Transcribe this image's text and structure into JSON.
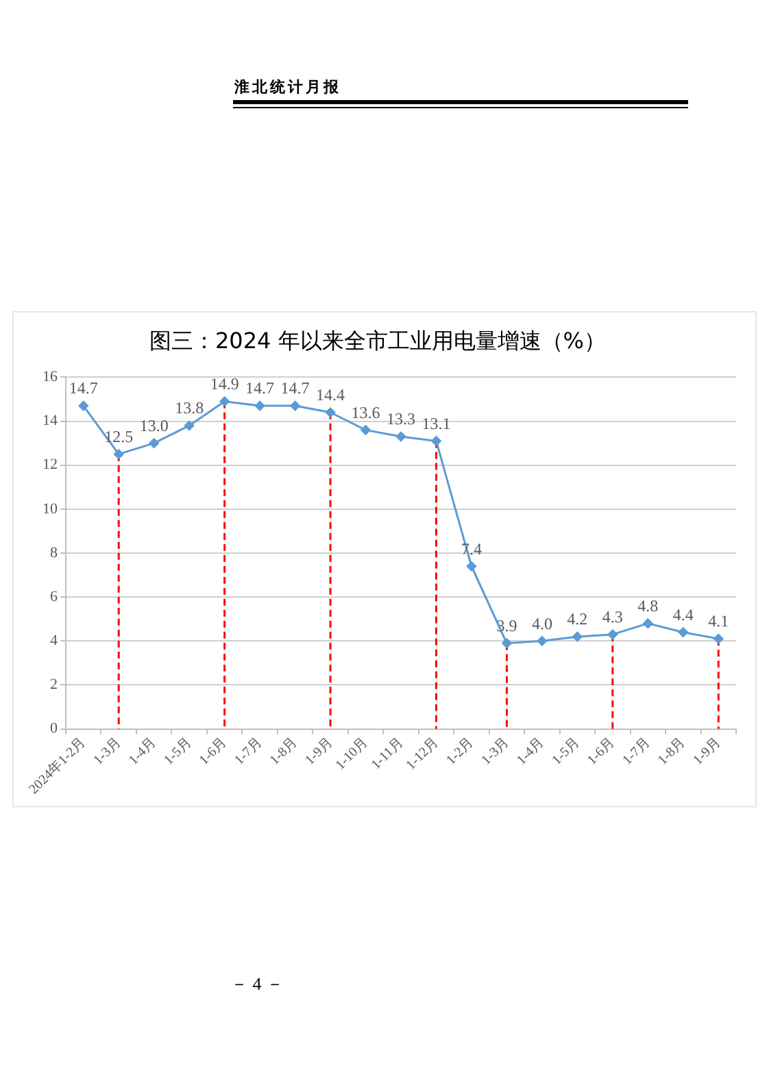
{
  "chart_data": {
    "type": "line",
    "title": "图三：2024 年以来全市工业用电量增速（%）",
    "categories": [
      "2024年1-2月",
      "1-3月",
      "1-4月",
      "1-5月",
      "1-6月",
      "1-7月",
      "1-8月",
      "1-9月",
      "1-10月",
      "1-11月",
      "1-12月",
      "1-2月",
      "1-3月",
      "1-4月",
      "1-5月",
      "1-6月",
      "1-7月",
      "1-8月",
      "1-9月"
    ],
    "values": [
      14.7,
      12.5,
      13.0,
      13.8,
      14.9,
      14.7,
      14.7,
      14.4,
      13.6,
      13.3,
      13.1,
      7.4,
      3.9,
      4.0,
      4.2,
      4.3,
      4.8,
      4.4,
      4.1
    ],
    "value_labels": [
      "14.7",
      "12.5",
      "13.0",
      "13.8",
      "14.9",
      "14.7",
      "14.7",
      "14.4",
      "13.6",
      "13.3",
      "13.1",
      "7.4",
      "3.9",
      "4.0",
      "4.2",
      "4.3",
      "4.8",
      "4.4",
      "4.1"
    ],
    "color": "#5b9bd5",
    "ylim": [
      0,
      16
    ],
    "yticks": [
      0,
      2,
      4,
      6,
      8,
      10,
      12,
      14,
      16
    ],
    "grid": "y",
    "marker": "diamond",
    "line_style": "solid",
    "ref_lines": [
      {
        "axis": "x",
        "value": "1-3月",
        "color": "#ff0000",
        "line_style": "dashed"
      },
      {
        "axis": "x",
        "value": "1-6月",
        "color": "#ff0000",
        "line_style": "dashed"
      },
      {
        "axis": "x",
        "value": "1-9月",
        "color": "#ff0000",
        "line_style": "dashed"
      },
      {
        "axis": "x",
        "value": "1-12月",
        "color": "#ff0000",
        "line_style": "dashed"
      }
    ],
    "annotations": [
      "淮北统计月报",
      "－ 4 －"
    ]
  }
}
